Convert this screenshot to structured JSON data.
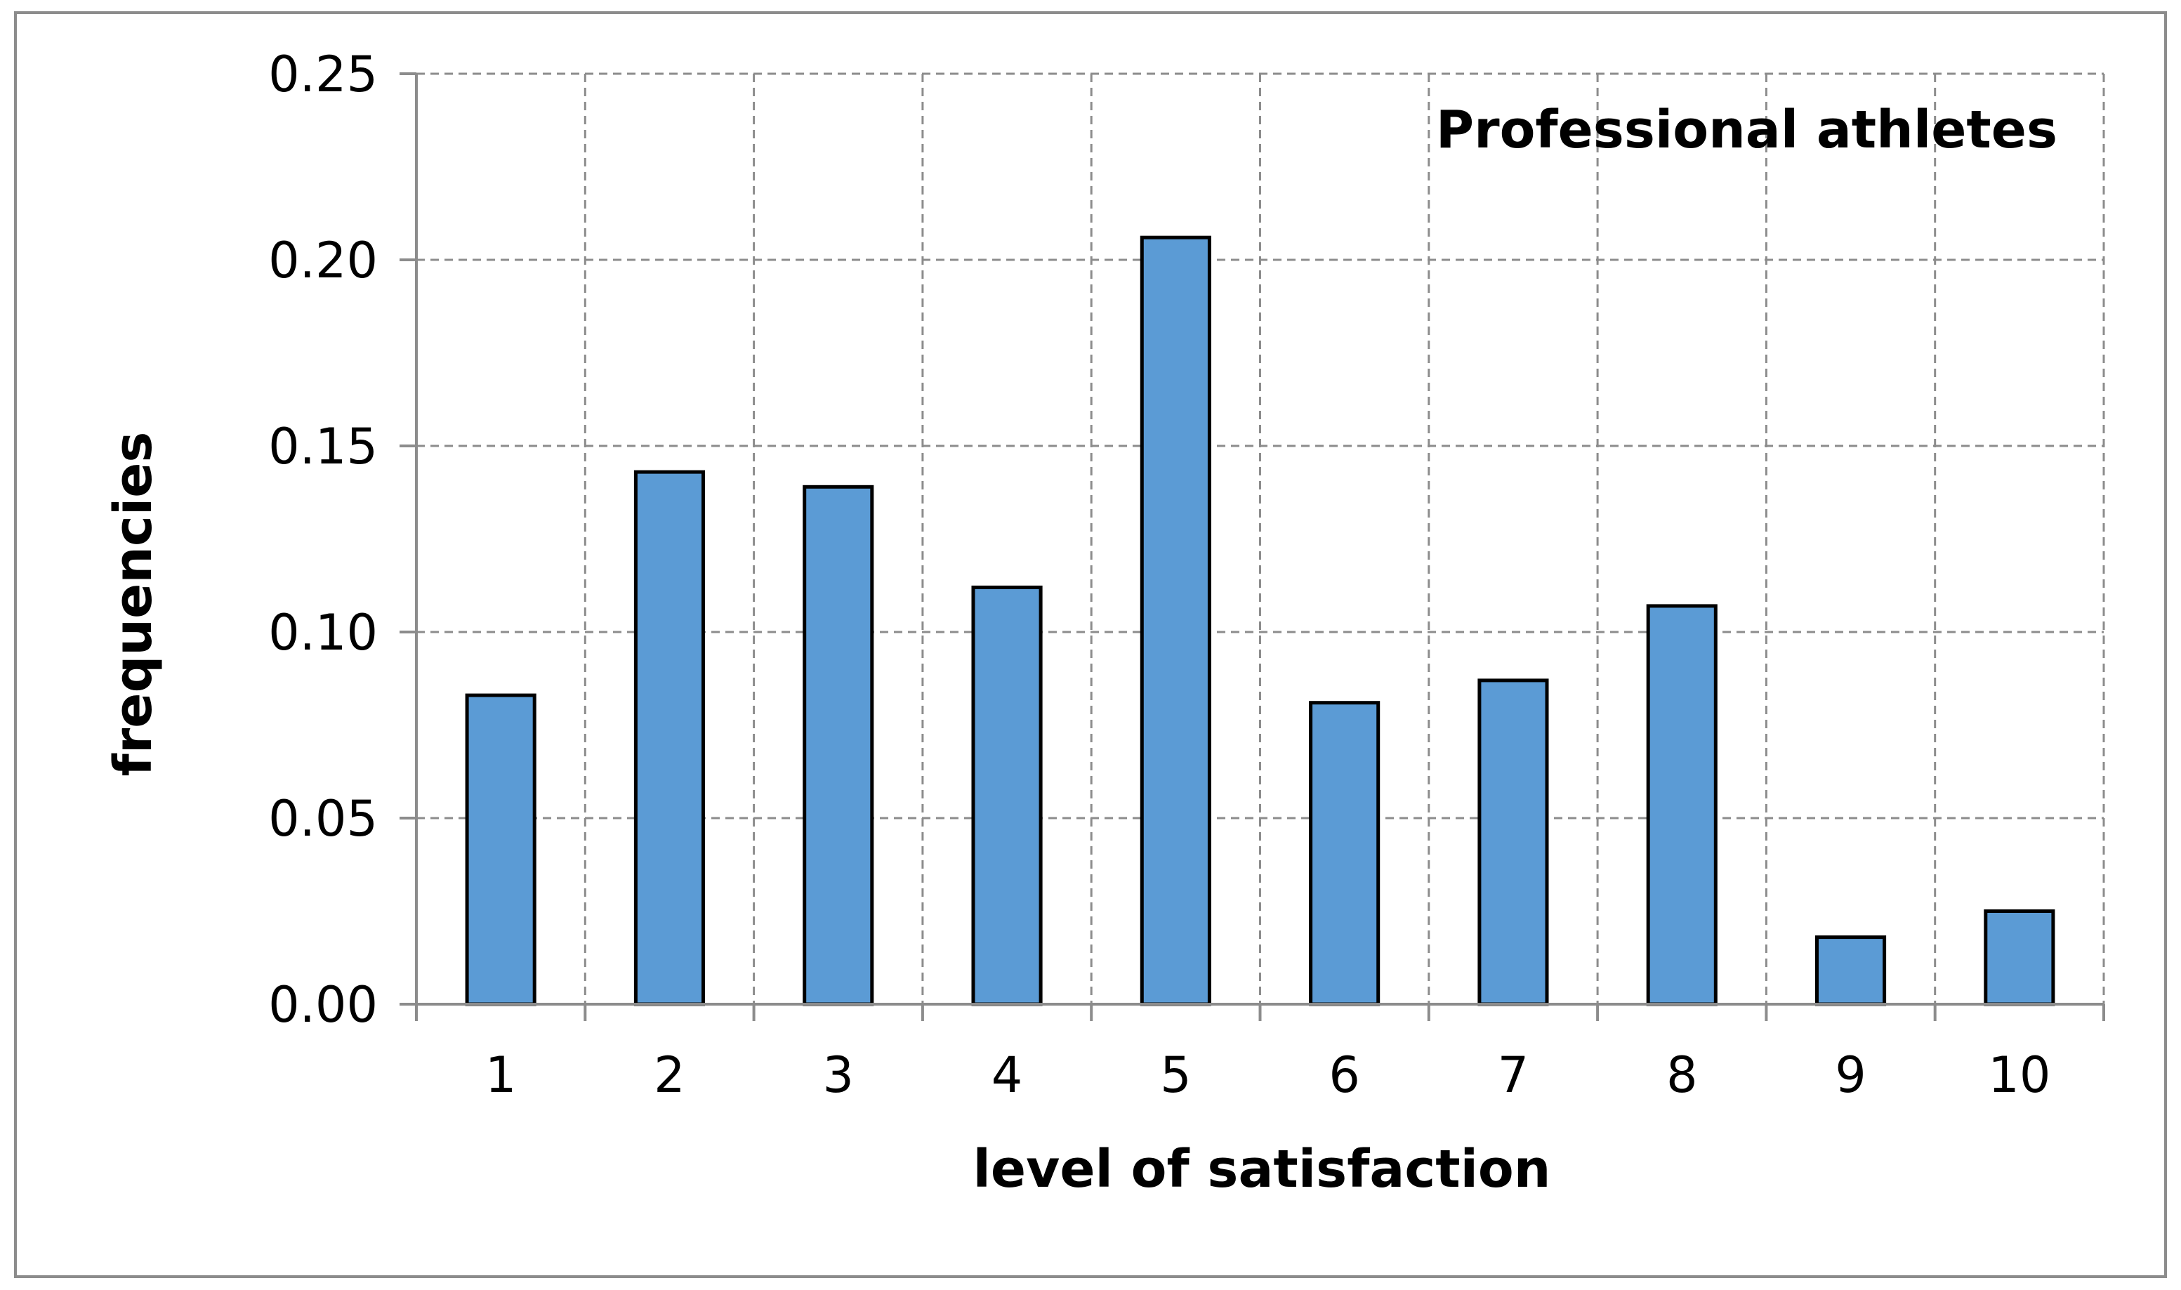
{
  "chart_data": {
    "type": "bar",
    "title": "Professional athletes",
    "xlabel": "level of satisfaction",
    "ylabel": "frequencies",
    "categories": [
      "1",
      "2",
      "3",
      "4",
      "5",
      "6",
      "7",
      "8",
      "9",
      "10"
    ],
    "values": [
      0.083,
      0.143,
      0.139,
      0.112,
      0.206,
      0.081,
      0.087,
      0.107,
      0.018,
      0.025
    ],
    "ylim": [
      0,
      0.25
    ],
    "yticks": [
      "0.00",
      "0.05",
      "0.10",
      "0.15",
      "0.20",
      "0.25"
    ],
    "grid": true,
    "legend": "none",
    "bar_color": "#5b9bd5",
    "title_placement": "top-right"
  }
}
